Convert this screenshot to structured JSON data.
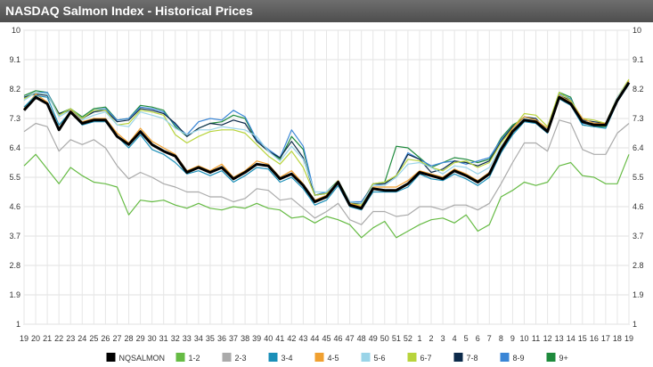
{
  "header": {
    "title": "NASDAQ Salmon Index - Historical Prices"
  },
  "chart_data": {
    "type": "line",
    "title": "NASDAQ Salmon Index - Historical Prices",
    "xlabel": "",
    "ylabel": "",
    "ylim": [
      1,
      10
    ],
    "yticks": [
      "1",
      "1.9",
      "2.8",
      "3.7",
      "4.6",
      "5.5",
      "6.4",
      "7.3",
      "8.2",
      "9.1",
      "10"
    ],
    "grid": true,
    "legend_position": "bottom",
    "categories": [
      "19",
      "20",
      "21",
      "22",
      "23",
      "24",
      "25",
      "26",
      "27",
      "28",
      "29",
      "30",
      "31",
      "32",
      "33",
      "34",
      "35",
      "36",
      "37",
      "38",
      "39",
      "40",
      "41",
      "42",
      "43",
      "44",
      "45",
      "46",
      "47",
      "48",
      "49",
      "50",
      "51",
      "52",
      "1",
      "2",
      "3",
      "4",
      "5",
      "6",
      "7",
      "8",
      "9",
      "10",
      "11",
      "12",
      "13",
      "14",
      "15",
      "16",
      "17",
      "18",
      "19"
    ],
    "series": [
      {
        "name": "NQSALMON",
        "color": "#000000",
        "values": [
          7.55,
          7.95,
          7.75,
          6.95,
          7.5,
          7.15,
          7.25,
          7.25,
          6.75,
          6.5,
          6.9,
          6.5,
          6.3,
          6.15,
          5.65,
          5.8,
          5.65,
          5.8,
          5.45,
          5.65,
          5.9,
          5.85,
          5.45,
          5.6,
          5.25,
          4.75,
          4.9,
          5.35,
          4.65,
          4.55,
          5.15,
          5.1,
          5.1,
          5.3,
          5.65,
          5.55,
          5.45,
          5.7,
          5.55,
          5.35,
          5.6,
          6.35,
          6.9,
          7.25,
          7.2,
          6.9,
          7.95,
          7.75,
          7.2,
          7.1,
          7.1,
          7.85,
          8.4
        ]
      },
      {
        "name": "1-2",
        "color": "#66bb44",
        "values": [
          5.85,
          6.2,
          5.75,
          5.3,
          5.8,
          5.55,
          5.35,
          5.3,
          5.2,
          4.35,
          4.8,
          4.75,
          4.8,
          4.65,
          4.55,
          4.7,
          4.55,
          4.5,
          4.6,
          4.55,
          4.7,
          4.55,
          4.5,
          4.25,
          4.3,
          4.1,
          4.3,
          4.2,
          4.05,
          3.65,
          3.95,
          4.15,
          3.65,
          3.85,
          4.05,
          4.2,
          4.25,
          4.1,
          4.35,
          3.85,
          4.05,
          4.9,
          5.1,
          5.35,
          5.25,
          5.35,
          5.85,
          5.95,
          5.55,
          5.5,
          5.3,
          5.3,
          6.2
        ]
      },
      {
        "name": "2-3",
        "color": "#aaaaaa",
        "values": [
          6.9,
          7.15,
          7.05,
          6.3,
          6.65,
          6.5,
          6.65,
          6.4,
          5.85,
          5.45,
          5.65,
          5.5,
          5.3,
          5.2,
          5.05,
          5.05,
          4.9,
          4.9,
          4.75,
          4.85,
          5.15,
          5.1,
          4.8,
          4.85,
          4.55,
          4.25,
          4.45,
          4.7,
          4.2,
          4.05,
          4.45,
          4.45,
          4.3,
          4.35,
          4.6,
          4.6,
          4.5,
          4.65,
          4.65,
          4.5,
          4.7,
          5.3,
          5.95,
          6.55,
          6.55,
          6.3,
          7.25,
          7.15,
          6.35,
          6.2,
          6.2,
          6.85,
          7.15
        ]
      },
      {
        "name": "3-4",
        "color": "#1a8fb8",
        "values": [
          7.65,
          8.0,
          7.95,
          7.1,
          7.5,
          7.1,
          7.2,
          7.2,
          6.75,
          6.4,
          6.8,
          6.35,
          6.2,
          5.95,
          5.6,
          5.7,
          5.55,
          5.7,
          5.35,
          5.55,
          5.8,
          5.75,
          5.35,
          5.5,
          5.15,
          4.65,
          4.8,
          5.25,
          4.6,
          4.5,
          5.05,
          5.05,
          5.05,
          5.2,
          5.6,
          5.45,
          5.4,
          5.6,
          5.45,
          5.25,
          5.5,
          6.25,
          6.8,
          7.2,
          7.15,
          6.85,
          7.9,
          7.7,
          7.1,
          7.05,
          7.0,
          7.8,
          8.35
        ]
      },
      {
        "name": "4-5",
        "color": "#f0a030",
        "values": [
          7.6,
          8.05,
          7.8,
          7.0,
          7.55,
          7.2,
          7.3,
          7.3,
          6.85,
          6.55,
          7.0,
          6.6,
          6.4,
          6.2,
          5.7,
          5.85,
          5.7,
          5.9,
          5.5,
          5.7,
          6.0,
          5.9,
          5.5,
          5.7,
          5.3,
          4.8,
          4.95,
          5.4,
          4.7,
          4.6,
          5.2,
          5.2,
          5.2,
          5.4,
          5.7,
          5.6,
          5.5,
          5.75,
          5.6,
          5.4,
          5.65,
          6.4,
          7.0,
          7.35,
          7.25,
          7.0,
          8.0,
          7.8,
          7.3,
          7.15,
          7.15,
          7.9,
          8.45
        ]
      },
      {
        "name": "5-6",
        "color": "#9ad4e8",
        "values": [
          7.85,
          8.1,
          8.05,
          7.35,
          7.55,
          7.25,
          7.4,
          7.5,
          7.1,
          7.05,
          7.5,
          7.4,
          7.3,
          7.0,
          6.8,
          6.95,
          6.95,
          7.05,
          7.0,
          6.95,
          6.75,
          6.3,
          6.0,
          6.45,
          6.05,
          5.05,
          5.05,
          5.35,
          4.75,
          4.7,
          5.25,
          5.25,
          5.5,
          5.9,
          5.95,
          5.8,
          5.6,
          5.85,
          5.8,
          5.6,
          5.8,
          6.45,
          6.95,
          7.3,
          7.25,
          7.0,
          8.0,
          7.8,
          7.3,
          7.15,
          7.1,
          7.95,
          8.45
        ]
      },
      {
        "name": "6-7",
        "color": "#b8d43c",
        "values": [
          7.9,
          8.1,
          8.05,
          7.4,
          7.6,
          7.3,
          7.55,
          7.55,
          7.1,
          7.15,
          7.55,
          7.5,
          7.4,
          6.8,
          6.55,
          6.75,
          6.9,
          6.95,
          6.95,
          6.85,
          6.5,
          6.15,
          5.9,
          6.3,
          5.8,
          4.95,
          5.0,
          5.3,
          4.7,
          4.65,
          5.3,
          5.35,
          5.55,
          6.05,
          6.0,
          5.8,
          5.7,
          5.95,
          6.0,
          5.8,
          5.95,
          6.55,
          7.0,
          7.45,
          7.4,
          7.05,
          8.1,
          7.85,
          7.3,
          7.25,
          7.15,
          7.95,
          8.5
        ]
      },
      {
        "name": "7-8",
        "color": "#0c2a4a",
        "values": [
          7.95,
          8.05,
          8.0,
          7.45,
          7.55,
          7.3,
          7.5,
          7.55,
          7.2,
          7.25,
          7.6,
          7.55,
          7.45,
          7.15,
          6.75,
          7.0,
          7.15,
          7.1,
          7.25,
          7.15,
          6.6,
          6.3,
          6.1,
          6.6,
          6.1,
          4.95,
          5.0,
          5.35,
          4.7,
          4.7,
          5.3,
          5.3,
          5.55,
          6.2,
          6.05,
          5.65,
          5.75,
          6.0,
          5.95,
          5.85,
          6.0,
          6.6,
          7.05,
          7.35,
          7.3,
          6.9,
          8.0,
          7.85,
          7.25,
          7.2,
          7.15,
          7.95,
          8.45
        ]
      },
      {
        "name": "8-9",
        "color": "#3a86d6",
        "values": [
          7.95,
          8.1,
          8.1,
          7.4,
          7.6,
          7.3,
          7.55,
          7.6,
          7.25,
          7.3,
          7.65,
          7.6,
          7.5,
          7.1,
          6.8,
          7.2,
          7.3,
          7.25,
          7.55,
          7.35,
          6.65,
          6.35,
          6.1,
          6.95,
          6.45,
          4.95,
          5.05,
          5.35,
          4.75,
          4.75,
          5.25,
          5.3,
          5.55,
          6.25,
          6.05,
          5.85,
          5.95,
          6.0,
          5.9,
          6.0,
          6.1,
          6.65,
          7.05,
          7.3,
          7.2,
          6.95,
          8.05,
          7.9,
          7.15,
          7.1,
          7.15,
          7.9,
          8.4
        ]
      },
      {
        "name": "9+",
        "color": "#1e8a3c",
        "values": [
          8.0,
          8.15,
          8.1,
          7.45,
          7.6,
          7.35,
          7.6,
          7.65,
          7.25,
          7.3,
          7.7,
          7.65,
          7.55,
          7.05,
          6.75,
          7.0,
          7.15,
          7.2,
          7.4,
          7.3,
          6.6,
          6.3,
          6.05,
          6.75,
          6.35,
          4.95,
          5.05,
          5.4,
          4.75,
          4.7,
          5.3,
          5.35,
          6.45,
          6.4,
          6.1,
          5.8,
          5.95,
          6.1,
          6.05,
          5.95,
          6.05,
          6.7,
          7.1,
          7.3,
          7.2,
          7.0,
          8.1,
          7.95,
          7.1,
          7.05,
          7.05,
          7.85,
          8.35
        ]
      }
    ]
  }
}
